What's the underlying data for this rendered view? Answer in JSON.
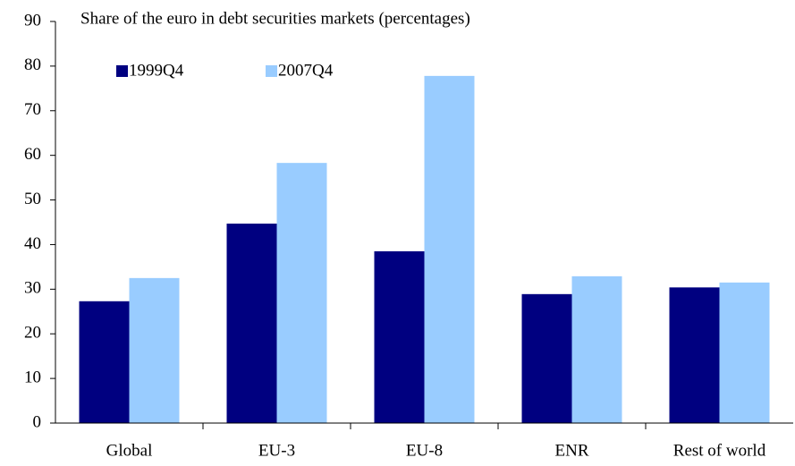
{
  "chart_data": {
    "type": "bar",
    "title": "Share of the euro in debt securities markets (percentages)",
    "categories": [
      "Global",
      "EU-3",
      "EU-8",
      "ENR",
      "Rest of world"
    ],
    "series": [
      {
        "name": "1999Q4",
        "color": "#000080",
        "values": [
          27.3,
          44.7,
          38.5,
          28.9,
          30.4
        ]
      },
      {
        "name": "2007Q4",
        "color": "#99ccff",
        "values": [
          32.5,
          58.3,
          77.8,
          32.9,
          31.5
        ]
      }
    ],
    "ylim": [
      0,
      90
    ],
    "yticks": [
      0,
      10,
      20,
      30,
      40,
      50,
      60,
      70,
      80,
      90
    ],
    "grid": false
  }
}
